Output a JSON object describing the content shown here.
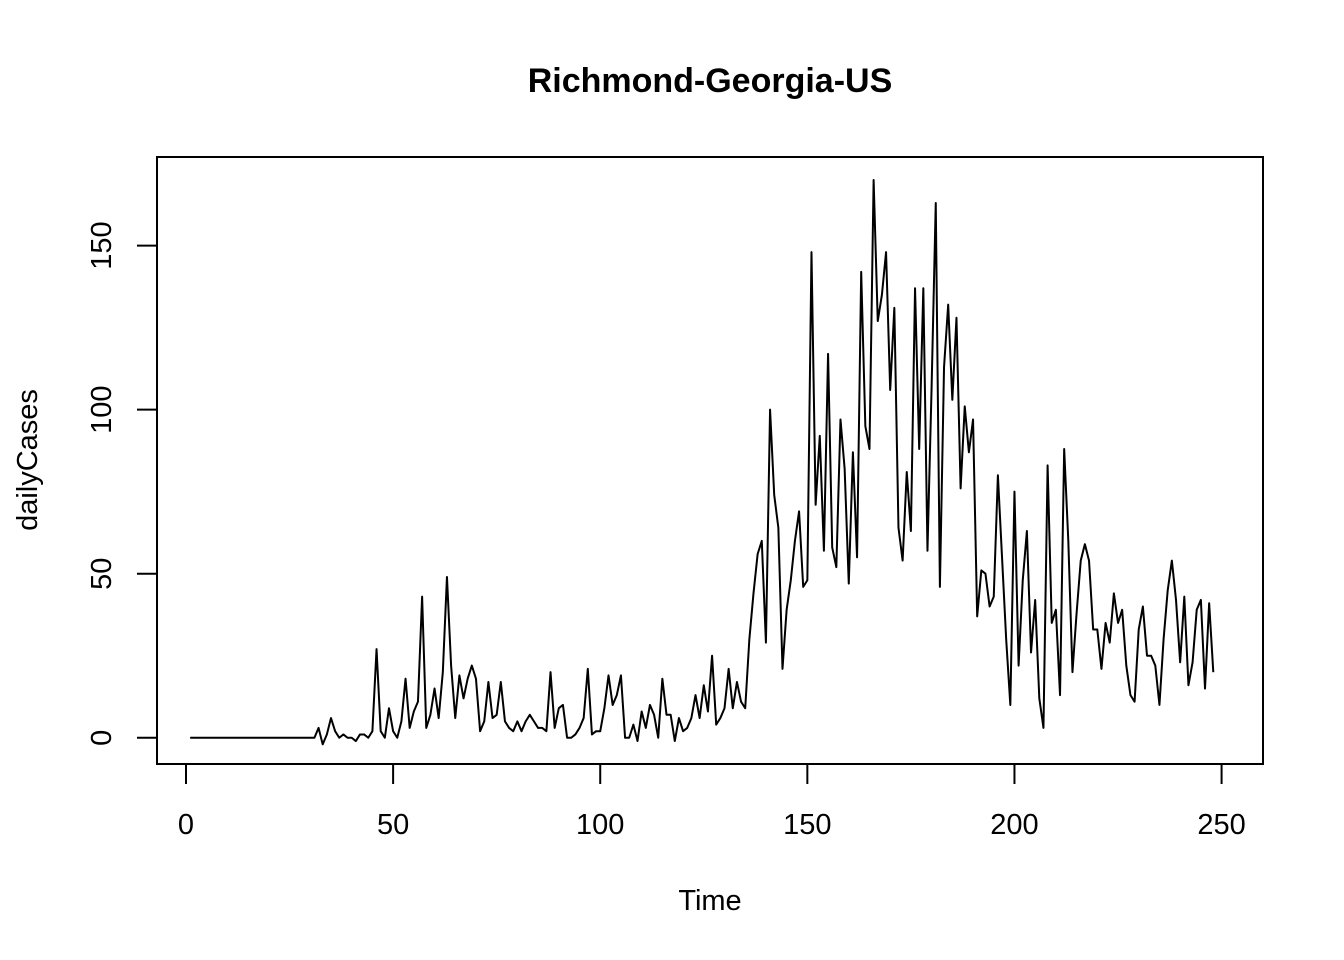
{
  "chart_data": {
    "type": "line",
    "title": "Richmond-Georgia-US",
    "xlabel": "Time",
    "ylabel": "dailyCases",
    "xlim": [
      -7,
      260
    ],
    "ylim": [
      -8,
      177
    ],
    "xticks": [
      0,
      50,
      100,
      150,
      200,
      250
    ],
    "yticks": [
      0,
      50,
      100,
      150
    ],
    "grid": false,
    "legend": "none",
    "line_color": "#000000",
    "series": [
      {
        "x_start": 1,
        "values": [
          0,
          0,
          0,
          0,
          0,
          0,
          0,
          0,
          0,
          0,
          0,
          0,
          0,
          0,
          0,
          0,
          0,
          0,
          0,
          0,
          0,
          0,
          0,
          0,
          0,
          0,
          0,
          0,
          0,
          0,
          0,
          3,
          -2,
          1,
          6,
          2,
          0,
          1,
          0,
          0,
          -1,
          1,
          1,
          0,
          2,
          27,
          2,
          0,
          9,
          2,
          0,
          5,
          18,
          3,
          8,
          11,
          43,
          3,
          7,
          15,
          6,
          20,
          49,
          22,
          6,
          19,
          12,
          18,
          22,
          18,
          2,
          5,
          17,
          6,
          7,
          17,
          5,
          3,
          2,
          5,
          2,
          5,
          7,
          5,
          3,
          3,
          2,
          20,
          3,
          9,
          10,
          0,
          0,
          1,
          3,
          6,
          21,
          1,
          2,
          2,
          9,
          19,
          10,
          13,
          19,
          0,
          0,
          4,
          -1,
          8,
          3,
          10,
          7,
          0,
          18,
          7,
          7,
          -1,
          6,
          2,
          3,
          6,
          13,
          6,
          16,
          8,
          25,
          4,
          6,
          9,
          21,
          9,
          17,
          11,
          9,
          30,
          44,
          56,
          60,
          29,
          100,
          74,
          64,
          21,
          39,
          48,
          60,
          69,
          46,
          48,
          148,
          71,
          92,
          57,
          117,
          58,
          52,
          97,
          82,
          47,
          87,
          55,
          142,
          95,
          88,
          170,
          127,
          135,
          148,
          106,
          131,
          64,
          54,
          81,
          63,
          137,
          88,
          137,
          57,
          107,
          163,
          46,
          113,
          132,
          103,
          128,
          76,
          101,
          87,
          97,
          37,
          51,
          50,
          40,
          43,
          80,
          55,
          30,
          10,
          75,
          22,
          48,
          63,
          26,
          42,
          12,
          3,
          83,
          35,
          39,
          13,
          88,
          60,
          20,
          38,
          54,
          59,
          54,
          33,
          33,
          21,
          35,
          29,
          44,
          35,
          39,
          22,
          13,
          11,
          33,
          40,
          25,
          25,
          22,
          10,
          30,
          45,
          54,
          42,
          23,
          43,
          16,
          23,
          39,
          42,
          15,
          41,
          20
        ]
      }
    ]
  }
}
